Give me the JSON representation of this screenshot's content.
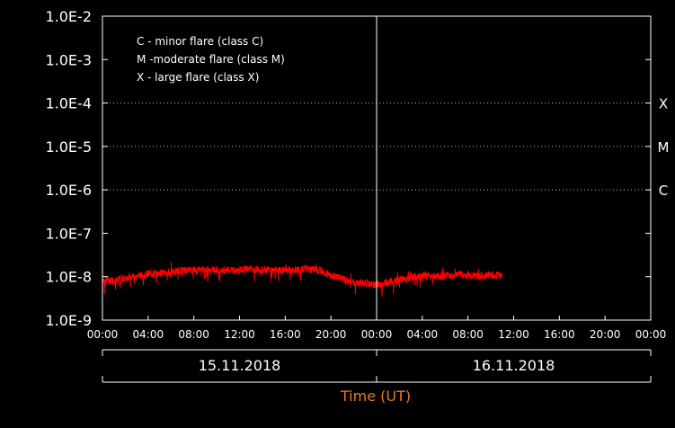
{
  "chart_data": {
    "type": "line",
    "y_scale": "log",
    "ylim": [
      1e-09,
      0.01
    ],
    "y_tick_labels": [
      "1.0E-9",
      "1.0E-8",
      "1.0E-7",
      "1.0E-6",
      "1.0E-5",
      "1.0E-4",
      "1.0E-3",
      "1.0E-2"
    ],
    "y_tick_values": [
      1e-09,
      1e-08,
      1e-07,
      1e-06,
      1e-05,
      0.0001,
      0.001,
      0.01
    ],
    "x_range_hours": [
      0,
      48
    ],
    "x_tick_labels": [
      "00:00",
      "04:00",
      "08:00",
      "12:00",
      "16:00",
      "20:00",
      "00:00",
      "04:00",
      "08:00",
      "12:00",
      "16:00",
      "20:00",
      "00:00"
    ],
    "day_labels": [
      "15.11.2018",
      "16.11.2018"
    ],
    "xlabel": "Time (UT)",
    "class_thresholds": [
      {
        "label": "X",
        "value": 0.0001
      },
      {
        "label": "M",
        "value": 1e-05
      },
      {
        "label": "C",
        "value": 1e-06
      }
    ],
    "legend": [
      "C - minor flare (class C)",
      "M -moderate flare (class M)",
      "X - large flare (class X)"
    ],
    "series": [
      {
        "color": "#ff0000",
        "x": [
          0,
          1,
          2,
          3,
          4,
          5,
          6,
          7,
          8,
          9,
          10,
          11,
          12,
          13,
          14,
          15,
          16,
          17,
          18,
          19,
          20,
          21,
          22,
          23,
          24,
          25,
          26,
          27,
          28,
          29,
          30,
          31,
          32,
          33,
          34,
          35
        ],
        "values": [
          8.5e-09,
          8e-09,
          9.5e-09,
          1.05e-08,
          1.15e-08,
          1.2e-08,
          1.3e-08,
          1.4e-08,
          1.45e-08,
          1.45e-08,
          1.4e-08,
          1.45e-08,
          1.4e-08,
          1.5e-08,
          1.45e-08,
          1.4e-08,
          1.4e-08,
          1.45e-08,
          1.5e-08,
          1.4e-08,
          1.1e-08,
          9e-09,
          7.5e-09,
          7e-09,
          6.5e-09,
          7.5e-09,
          8.5e-09,
          9.5e-09,
          1e-08,
          1.05e-08,
          1.05e-08,
          1.1e-08,
          1.1e-08,
          1.05e-08,
          1.1e-08,
          1.05e-08
        ]
      }
    ]
  }
}
